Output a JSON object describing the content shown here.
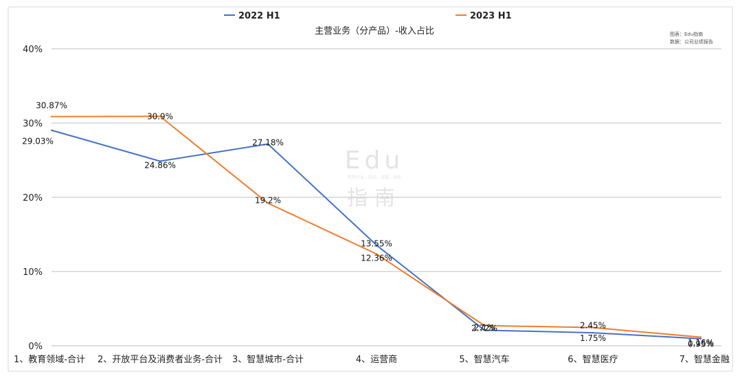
{
  "chart_data": {
    "type": "line",
    "title": "主营业务（分产品）-收入占比",
    "categories": [
      "1、教育领域-合计",
      "2、开放平台及消费者业务-合计",
      "3、智慧城市-合计",
      "4、运营商",
      "5、智慧汽车",
      "6、智慧医疗",
      "7、智慧金融"
    ],
    "series": [
      {
        "name": "2022 H1",
        "color": "#4472C4",
        "values": [
          29.03,
          24.86,
          27.18,
          13.55,
          2.1,
          1.75,
          0.95
        ],
        "labels": [
          "29.03%",
          "24.86%",
          "27.18%",
          "13.55%",
          "2.1%",
          "1.75%",
          "0.95%"
        ]
      },
      {
        "name": "2023 H1",
        "color": "#ED7D31",
        "values": [
          30.87,
          30.9,
          19.2,
          12.36,
          2.72,
          2.45,
          1.16
        ],
        "labels": [
          "30.87%",
          "30.9%",
          "19.2%",
          "12.36%",
          "2.72%",
          "2.45%",
          "1.16%"
        ]
      }
    ],
    "ylim": [
      0,
      40
    ],
    "yticks": [
      0,
      10,
      20,
      30,
      40
    ],
    "ytick_labels": [
      "0%",
      "10%",
      "20%",
      "30%",
      "40%"
    ],
    "grid": true,
    "legend_position": "top"
  },
  "source_note": {
    "line1": "图表：Edu指南",
    "line2": "数据：公司业绩报告"
  },
  "watermark": {
    "main": "Edu",
    "tagline": "教育行业，前沿，深度，独家",
    "sub": "指南"
  }
}
